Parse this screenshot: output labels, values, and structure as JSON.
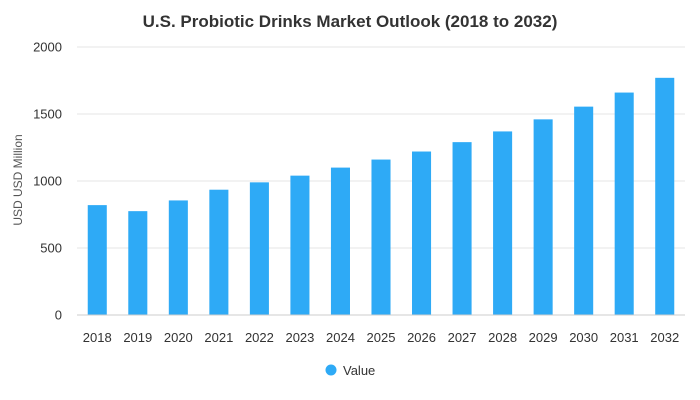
{
  "chart_data": {
    "type": "bar",
    "title": "U.S. Probiotic Drinks Market Outlook (2018 to 2032)",
    "xlabel": "",
    "ylabel": "USD USD Million",
    "categories": [
      "2018",
      "2019",
      "2020",
      "2021",
      "2022",
      "2023",
      "2024",
      "2025",
      "2026",
      "2027",
      "2028",
      "2029",
      "2030",
      "2031",
      "2032"
    ],
    "series": [
      {
        "name": "Value",
        "color": "#2eaaf6",
        "values": [
          820,
          775,
          855,
          935,
          990,
          1040,
          1100,
          1160,
          1220,
          1290,
          1370,
          1460,
          1555,
          1660,
          1770
        ]
      }
    ],
    "ylim": [
      0,
      2000
    ],
    "yticks": [
      0,
      500,
      1000,
      1500,
      2000
    ],
    "grid": true,
    "legend_position": "bottom-center"
  }
}
